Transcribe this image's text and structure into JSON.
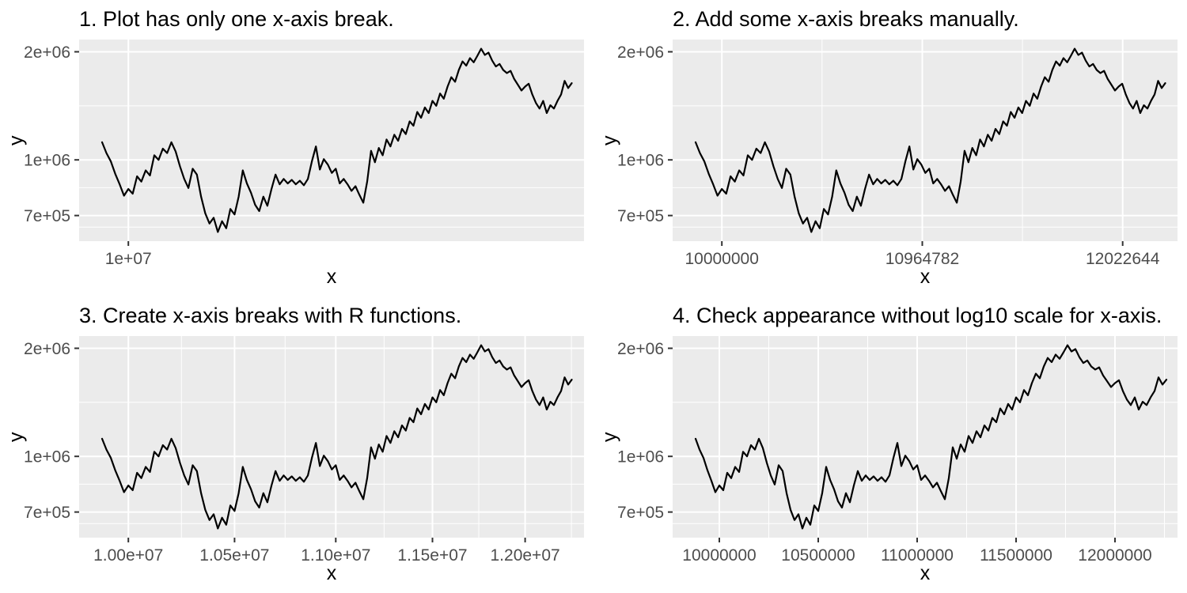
{
  "style": {
    "page_bg": "#ffffff",
    "panel_bg": "#ebebeb",
    "grid_color": "#ffffff",
    "line_color": "#000000",
    "tick_color": "#333333",
    "tick_label_color": "#4d4d4d",
    "title_color": "#000000"
  },
  "chart_data": {
    "type": "line",
    "layout": "2x2-grid",
    "description": "Same random-walk series drawn in four panels with different x-axis break settings; y-axis is log10 in all panels.",
    "series": {
      "name": "random-walk",
      "x": [
        9880000.0,
        9900000.0,
        9920000.0,
        9940000.0,
        9960000.0,
        9980000.0,
        10000000.0,
        10020000.0,
        10040000.0,
        10060000.0,
        10080000.0,
        10100000.0,
        10120000.0,
        10140000.0,
        10160000.0,
        10180000.0,
        10200000.0,
        10220000.0,
        10240000.0,
        10260000.0,
        10280000.0,
        10300000.0,
        10320000.0,
        10340000.0,
        10360000.0,
        10380000.0,
        10400000.0,
        10420000.0,
        10440000.0,
        10460000.0,
        10480000.0,
        10500000.0,
        10520000.0,
        10540000.0,
        10560000.0,
        10580000.0,
        10600000.0,
        10620000.0,
        10640000.0,
        10660000.0,
        10680000.0,
        10700000.0,
        10720000.0,
        10740000.0,
        10760000.0,
        10780000.0,
        10800000.0,
        10820000.0,
        10840000.0,
        10860000.0,
        10880000.0,
        10900000.0,
        10920000.0,
        10940000.0,
        10960000.0,
        10980000.0,
        11000000.0,
        11020000.0,
        11040000.0,
        11060000.0,
        11080000.0,
        11100000.0,
        11120000.0,
        11140000.0,
        11160000.0,
        11180000.0,
        11200000.0,
        11220000.0,
        11240000.0,
        11260000.0,
        11280000.0,
        11300000.0,
        11320000.0,
        11340000.0,
        11360000.0,
        11380000.0,
        11400000.0,
        11420000.0,
        11440000.0,
        11460000.0,
        11480000.0,
        11500000.0,
        11520000.0,
        11540000.0,
        11560000.0,
        11580000.0,
        11600000.0,
        11620000.0,
        11640000.0,
        11660000.0,
        11680000.0,
        11700000.0,
        11720000.0,
        11740000.0,
        11760000.0,
        11780000.0,
        11800000.0,
        11820000.0,
        11840000.0,
        11860000.0,
        11880000.0,
        11900000.0,
        11920000.0,
        11940000.0,
        11960000.0,
        11980000.0,
        12000000.0,
        12020000.0,
        12040000.0,
        12060000.0,
        12080000.0,
        12100000.0,
        12120000.0,
        12140000.0,
        12160000.0,
        12180000.0,
        12200000.0,
        12220000.0,
        12240000.0,
        12260000.0
      ],
      "y": [
        1120000.0,
        1045000.0,
        990000.0,
        915000.0,
        855000.0,
        795000.0,
        830000.0,
        805000.0,
        900000.0,
        870000.0,
        935000.0,
        905000.0,
        1030000.0,
        1000000.0,
        1075000.0,
        1045000.0,
        1120000.0,
        1055000.0,
        960000.0,
        885000.0,
        835000.0,
        945000.0,
        910000.0,
        790000.0,
        710000.0,
        665000.0,
        690000.0,
        630000.0,
        675000.0,
        645000.0,
        730000.0,
        705000.0,
        790000.0,
        935000.0,
        860000.0,
        810000.0,
        750000.0,
        720000.0,
        790000.0,
        745000.0,
        830000.0,
        910000.0,
        855000.0,
        885000.0,
        860000.0,
        880000.0,
        855000.0,
        875000.0,
        850000.0,
        885000.0,
        990000.0,
        1090000.0,
        940000.0,
        1005000.0,
        970000.0,
        920000.0,
        945000.0,
        860000.0,
        885000.0,
        855000.0,
        820000.0,
        845000.0,
        800000.0,
        760000.0,
        870000.0,
        1060000.0,
        985000.0,
        1080000.0,
        1030000.0,
        1140000.0,
        1090000.0,
        1175000.0,
        1130000.0,
        1220000.0,
        1180000.0,
        1280000.0,
        1245000.0,
        1360000.0,
        1310000.0,
        1400000.0,
        1350000.0,
        1460000.0,
        1415000.0,
        1530000.0,
        1480000.0,
        1600000.0,
        1700000.0,
        1650000.0,
        1780000.0,
        1880000.0,
        1830000.0,
        1920000.0,
        1870000.0,
        1950000.0,
        2040000.0,
        1960000.0,
        1990000.0,
        1890000.0,
        1820000.0,
        1850000.0,
        1780000.0,
        1745000.0,
        1770000.0,
        1680000.0,
        1620000.0,
        1560000.0,
        1600000.0,
        1630000.0,
        1520000.0,
        1440000.0,
        1390000.0,
        1460000.0,
        1350000.0,
        1420000.0,
        1390000.0,
        1460000.0,
        1520000.0,
        1660000.0,
        1585000.0,
        1635000.0
      ]
    },
    "panels": [
      {
        "title": "1. Plot has only one x-axis break.",
        "xlabel": "x",
        "ylabel": "y",
        "x_scale": "log10",
        "x_domain": [
          9776400,
          12329300
        ],
        "x_breaks": [
          {
            "value": 10000000.0,
            "label": "1e+07"
          }
        ],
        "x_minor": [],
        "y_scale": "log10",
        "y_domain": [
          594000,
          2163400
        ],
        "y_breaks": [
          {
            "value": 700000.0,
            "label": "7e+05"
          },
          {
            "value": 1000000.0,
            "label": "1e+06"
          },
          {
            "value": 2000000.0,
            "label": "2e+06"
          }
        ],
        "y_minor": [
          650000,
          836660,
          1414214
        ]
      },
      {
        "title": "2. Add some x-axis breaks manually.",
        "xlabel": "x",
        "ylabel": "y",
        "x_scale": "log10",
        "x_domain": [
          9776400,
          12329300
        ],
        "x_breaks": [
          {
            "value": 10000000.0,
            "label": "10000000"
          },
          {
            "value": 10964782,
            "label": "10964782"
          },
          {
            "value": 12022644,
            "label": "12022644"
          }
        ],
        "x_minor": [
          10471285,
          11481536
        ],
        "y_scale": "log10",
        "y_domain": [
          594000,
          2163400
        ],
        "y_breaks": [
          {
            "value": 700000.0,
            "label": "7e+05"
          },
          {
            "value": 1000000.0,
            "label": "1e+06"
          },
          {
            "value": 2000000.0,
            "label": "2e+06"
          }
        ],
        "y_minor": [
          650000,
          836660,
          1414214
        ]
      },
      {
        "title": "3. Create x-axis breaks with R functions.",
        "xlabel": "x",
        "ylabel": "y",
        "x_scale": "log10",
        "x_domain": [
          9776400,
          12329300
        ],
        "x_breaks": [
          {
            "value": 10000000.0,
            "label": "1.00e+07"
          },
          {
            "value": 10500000.0,
            "label": "1.05e+07"
          },
          {
            "value": 11000000.0,
            "label": "1.10e+07"
          },
          {
            "value": 11500000.0,
            "label": "1.15e+07"
          },
          {
            "value": 12000000.0,
            "label": "1.20e+07"
          }
        ],
        "x_minor": [
          10246960,
          10747080,
          11247220,
          11747310,
          12258050
        ],
        "y_scale": "log10",
        "y_domain": [
          594000,
          2163400
        ],
        "y_breaks": [
          {
            "value": 700000.0,
            "label": "7e+05"
          },
          {
            "value": 1000000.0,
            "label": "1e+06"
          },
          {
            "value": 2000000.0,
            "label": "2e+06"
          }
        ],
        "y_minor": [
          650000,
          836660,
          1414214
        ]
      },
      {
        "title": "4. Check appearance without log10 scale for x-axis.",
        "xlabel": "x",
        "ylabel": "y",
        "x_scale": "linear",
        "x_domain": [
          9764000,
          12316000
        ],
        "x_breaks": [
          {
            "value": 10000000.0,
            "label": "10000000"
          },
          {
            "value": 10500000.0,
            "label": "10500000"
          },
          {
            "value": 11000000.0,
            "label": "11000000"
          },
          {
            "value": 11500000.0,
            "label": "11500000"
          },
          {
            "value": 12000000.0,
            "label": "12000000"
          }
        ],
        "x_minor": [
          10250000,
          10750000,
          11250000,
          11750000,
          12250000
        ],
        "y_scale": "log10",
        "y_domain": [
          594000,
          2163400
        ],
        "y_breaks": [
          {
            "value": 700000.0,
            "label": "7e+05"
          },
          {
            "value": 1000000.0,
            "label": "1e+06"
          },
          {
            "value": 2000000.0,
            "label": "2e+06"
          }
        ],
        "y_minor": [
          650000,
          836660,
          1414214
        ]
      }
    ]
  }
}
